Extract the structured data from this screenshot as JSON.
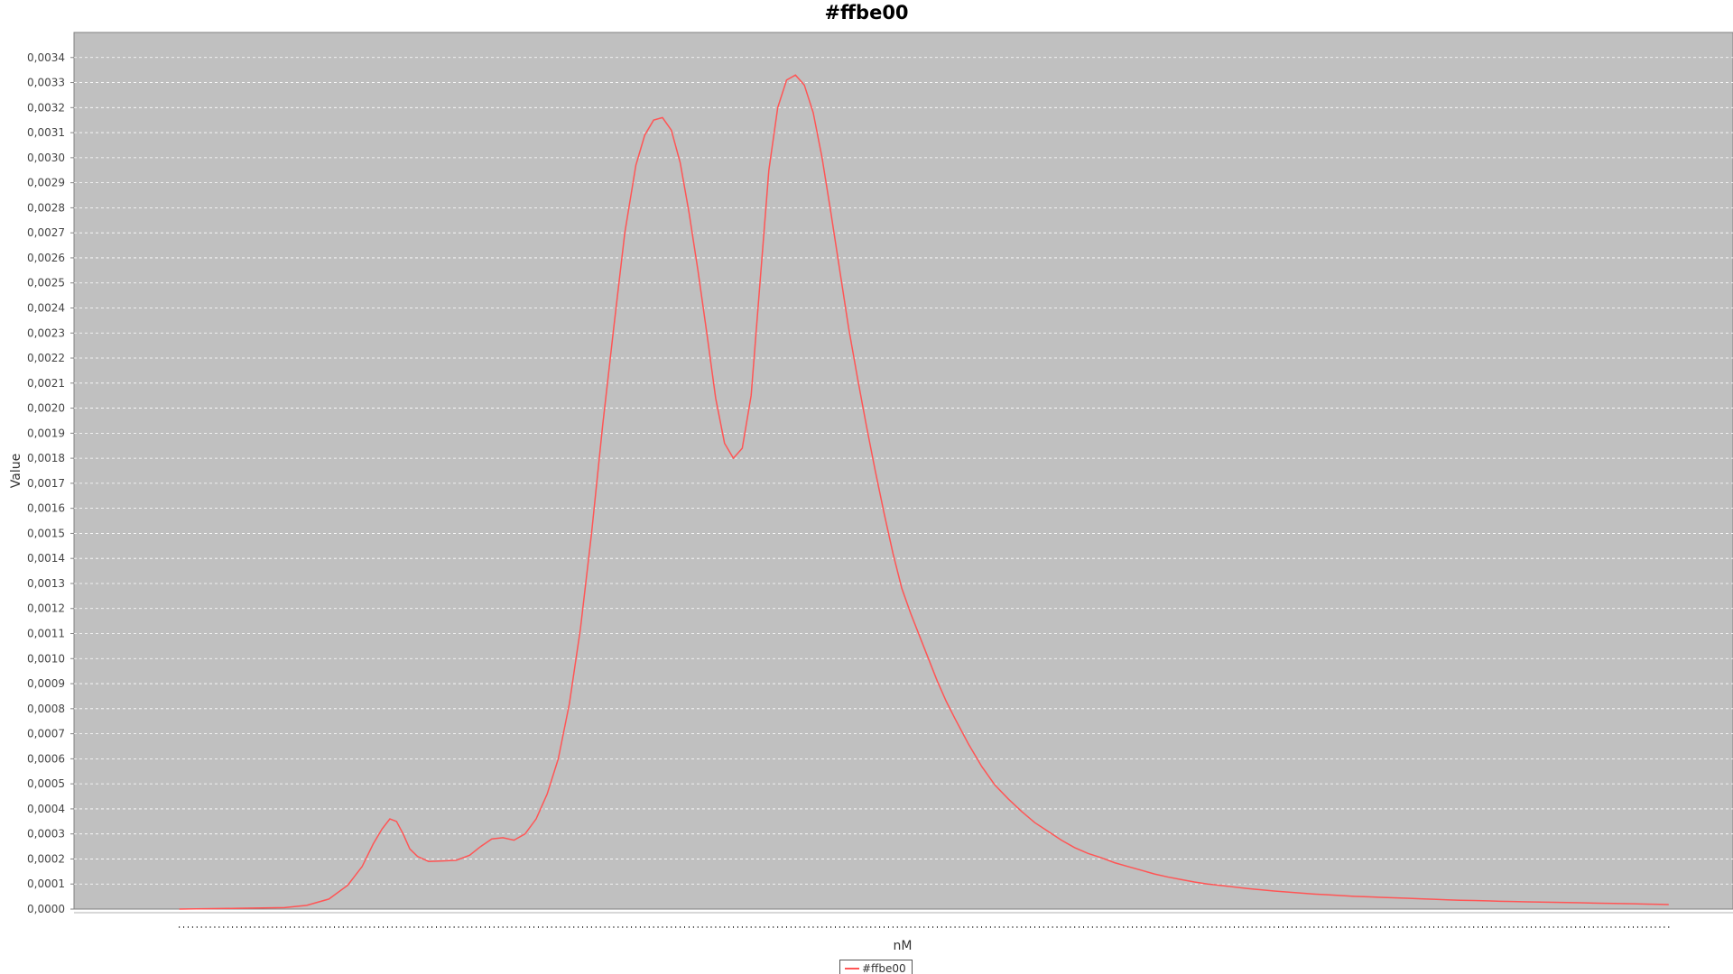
{
  "chart_data": {
    "type": "line",
    "title": "#ffbe00",
    "xlabel": "nM",
    "ylabel": "Value",
    "ylim": [
      0,
      0.0035
    ],
    "yticks": [
      "0,0000",
      "0,0001",
      "0,0002",
      "0,0003",
      "0,0004",
      "0,0005",
      "0,0006",
      "0,0007",
      "0,0008",
      "0,0009",
      "0,0010",
      "0,0011",
      "0,0012",
      "0,0013",
      "0,0014",
      "0,0015",
      "0,0016",
      "0,0017",
      "0,0018",
      "0,0019",
      "0,0020",
      "0,0021",
      "0,0022",
      "0,0023",
      "0,0024",
      "0,0025",
      "0,0026",
      "0,0027",
      "0,0028",
      "0,0029",
      "0,0030",
      "0,0031",
      "0,0032",
      "0,0033",
      "0,0034"
    ],
    "grid": true,
    "legend_position": "bottom-center",
    "background_color": "#c0c0c0",
    "line_color": "#ff5555",
    "series": [
      {
        "name": "#ffbe00",
        "color": "#ff5555",
        "x": [
          0,
          55,
          95,
          115,
          135,
          152,
          165,
          175,
          183,
          190,
          196,
          202,
          208,
          215,
          225,
          238,
          250,
          262,
          272,
          282,
          292,
          302,
          312,
          322,
          332,
          342,
          352,
          362,
          372,
          382,
          392,
          402,
          412,
          420,
          428,
          436,
          444,
          452,
          460,
          468,
          476,
          484,
          492,
          500,
          508,
          516,
          524,
          532,
          540,
          548,
          556,
          564,
          572,
          580,
          588,
          596,
          604,
          612,
          620,
          628,
          636,
          644,
          652,
          660,
          668,
          676,
          684,
          692,
          700,
          712,
          724,
          736,
          748,
          760,
          772,
          784,
          796,
          808,
          820,
          832,
          844,
          856,
          868,
          880,
          892,
          904,
          916,
          928,
          940,
          952,
          964,
          976,
          988,
          1000,
          1012,
          1024,
          1036,
          1048,
          1060,
          1072,
          1084,
          1096,
          1108,
          1120,
          1132,
          1144,
          1156,
          1168,
          1180,
          1192,
          1204,
          1216,
          1228,
          1240,
          1252,
          1264,
          1276,
          1288,
          1300,
          1312,
          1324,
          1336,
          1344
        ],
        "values": [
          0.0,
          3e-06,
          6e-06,
          1.5e-05,
          4e-05,
          9.5e-05,
          0.00017,
          0.00026,
          0.00032,
          0.00036,
          0.00035,
          0.0003,
          0.00024,
          0.00021,
          0.00019,
          0.000192,
          0.000195,
          0.000215,
          0.00025,
          0.00028,
          0.000285,
          0.000275,
          0.0003,
          0.00036,
          0.00046,
          0.0006,
          0.00082,
          0.00112,
          0.0015,
          0.00193,
          0.00232,
          0.0027,
          0.00297,
          0.00309,
          0.00315,
          0.00316,
          0.00311,
          0.00298,
          0.00278,
          0.00255,
          0.0023,
          0.00204,
          0.00186,
          0.0018,
          0.00184,
          0.00205,
          0.0025,
          0.00295,
          0.0032,
          0.00331,
          0.00333,
          0.00329,
          0.00318,
          0.003,
          0.00278,
          0.00255,
          0.00232,
          0.00212,
          0.00193,
          0.00175,
          0.00158,
          0.00142,
          0.00128,
          0.00118,
          0.00109,
          0.001,
          0.00091,
          0.00083,
          0.00076,
          0.00066,
          0.00057,
          0.000495,
          0.00044,
          0.00039,
          0.000345,
          0.00031,
          0.000275,
          0.000245,
          0.000222,
          0.000205,
          0.000185,
          0.00017,
          0.000155,
          0.00014,
          0.000128,
          0.000118,
          0.000108,
          0.0001,
          9.4e-05,
          8.8e-05,
          8.2e-05,
          7.7e-05,
          7.2e-05,
          6.8e-05,
          6.4e-05,
          6e-05,
          5.7e-05,
          5.4e-05,
          5.1e-05,
          4.9e-05,
          4.7e-05,
          4.5e-05,
          4.3e-05,
          4.1e-05,
          3.9e-05,
          3.7e-05,
          3.5e-05,
          3.4e-05,
          3.3e-05,
          3.1e-05,
          3e-05,
          2.9e-05,
          2.8e-05,
          2.7e-05,
          2.6e-05,
          2.5e-05,
          2.4e-05,
          2.3e-05,
          2.2e-05,
          2.1e-05,
          2e-05,
          1.9e-05,
          1.8e-05
        ],
        "xlim": [
          -95,
          1402
        ]
      }
    ]
  }
}
